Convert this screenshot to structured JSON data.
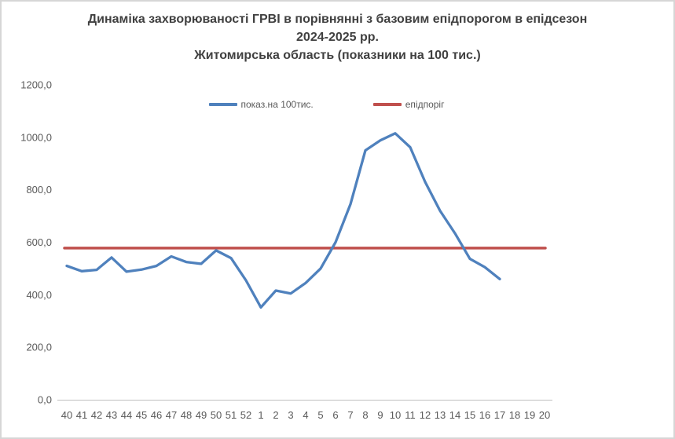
{
  "title": {
    "line1": "Динаміка захворюваності ГРВІ в порівнянні з базовим епідпорогом в епідсезон",
    "line2": "2024-2025 рр.",
    "line3": "Житомирська область (показники на 100 тис.)"
  },
  "legend": {
    "items": [
      {
        "label": "показ.на 100тис.",
        "color": "#4F81BD"
      },
      {
        "label": "епідпоріг",
        "color": "#C0504D"
      }
    ]
  },
  "chart_data": {
    "type": "line",
    "title": "Динаміка захворюваності ГРВІ в порівнянні з базовим епідпорогом в епідсезон 2024-2025 рр. Житомирська область (показники на 100 тис.)",
    "categories": [
      "40",
      "41",
      "42",
      "43",
      "44",
      "45",
      "46",
      "47",
      "48",
      "49",
      "50",
      "51",
      "52",
      "1",
      "2",
      "3",
      "4",
      "5",
      "6",
      "7",
      "8",
      "9",
      "10",
      "11",
      "12",
      "13",
      "14",
      "15",
      "16",
      "17",
      "18",
      "19",
      "20"
    ],
    "series": [
      {
        "name": "показ.на 100тис.",
        "color": "#4F81BD",
        "values": [
          510,
          490,
          495,
          542,
          488,
          496,
          510,
          546,
          525,
          518,
          569,
          540,
          455,
          352,
          416,
          405,
          445,
          500,
          600,
          745,
          950,
          988,
          1015,
          962,
          830,
          720,
          634,
          537,
          505,
          460,
          null,
          null,
          null
        ]
      },
      {
        "name": "епідпоріг",
        "color": "#C0504D",
        "type": "constant",
        "value": 578
      }
    ],
    "xlabel": "",
    "ylabel": "",
    "ylim": [
      0,
      1200
    ],
    "ytick_step": 200,
    "ytick_labels": [
      "0,0",
      "200,0",
      "400,0",
      "600,0",
      "800,0",
      "1000,0",
      "1200,0"
    ],
    "grid": false,
    "legend_position": "top"
  },
  "colors": {
    "series_blue": "#4F81BD",
    "threshold_red": "#C0504D",
    "axis_line": "#BFBFBF",
    "tick_text": "#595959",
    "title_text": "#404040",
    "background": "#FFFFFF",
    "border": "#D6D6D6"
  }
}
